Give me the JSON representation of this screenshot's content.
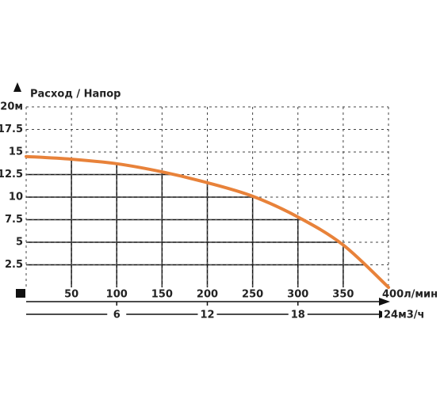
{
  "chart_data": {
    "type": "line",
    "title": "Расход / Напор",
    "x": [
      0,
      50,
      100,
      150,
      200,
      250,
      300,
      350,
      400
    ],
    "series": [
      {
        "color": "#e8823a",
        "values": [
          14.5,
          14.2,
          13.7,
          12.8,
          11.6,
          10.1,
          7.8,
          4.7,
          0
        ]
      }
    ],
    "xlim": [
      0,
      400
    ],
    "xticks": [
      50,
      100,
      150,
      200,
      250,
      300,
      350,
      {
        "value": 400,
        "label": "400л/мин"
      }
    ],
    "x2lim": [
      0,
      24
    ],
    "x2ticks": [
      6,
      12,
      18,
      {
        "value": 24,
        "label": "24м3/ч"
      }
    ],
    "ylim": [
      0,
      20
    ],
    "yticks": [
      2.5,
      5,
      7.5,
      10,
      12.5,
      15,
      17.5,
      {
        "value": 20,
        "label": "20м"
      }
    ],
    "grid": true
  }
}
